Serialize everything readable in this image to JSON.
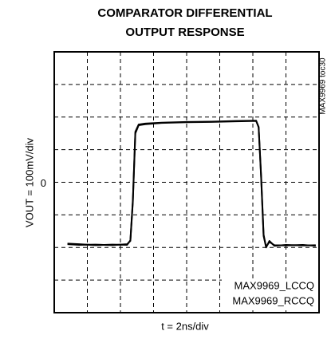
{
  "chart_data": {
    "type": "line",
    "title": [
      "COMPARATOR DIFFERENTIAL",
      "OUTPUT RESPONSE"
    ],
    "x_label": "t = 2ns/div",
    "y_label": "VOUT = 100mV/div",
    "annotation": "MAX9969 toc30",
    "xlim": [
      0,
      16
    ],
    "ylim": [
      -400,
      400
    ],
    "xgrid": [
      2,
      4,
      6,
      8,
      10,
      12,
      14
    ],
    "ygrid": [
      -300,
      -200,
      -100,
      100,
      200,
      300
    ],
    "yticks": [
      {
        "value": 0,
        "label": "0"
      }
    ],
    "grid": true,
    "legend": "lower right",
    "series": [
      {
        "name": "MAX9969_LCCQ",
        "color": "#000000",
        "x": [
          0.8,
          1.5,
          2.5,
          3.5,
          4.4,
          4.6,
          4.75,
          4.9,
          5.1,
          5.5,
          6.5,
          8,
          9.5,
          11,
          12.2,
          12.35,
          12.5,
          12.65,
          12.8,
          13.0,
          13.3,
          14,
          15,
          15.8
        ],
        "values": [
          -190,
          -192,
          -191,
          -193,
          -190,
          -180,
          -60,
          150,
          175,
          178,
          182,
          184,
          185,
          187,
          188,
          170,
          20,
          -160,
          -200,
          -180,
          -195,
          -192,
          -194,
          -193
        ]
      },
      {
        "name": "MAX9969_RCCQ",
        "color": "#000000",
        "x": [
          0.8,
          1.5,
          2.5,
          3.5,
          4.4,
          4.6,
          4.75,
          4.9,
          5.1,
          5.5,
          6.5,
          8,
          9.5,
          11,
          12.2,
          12.35,
          12.5,
          12.65,
          12.8,
          13.0,
          13.3,
          14,
          15,
          15.8
        ],
        "values": [
          -188,
          -190,
          -193,
          -191,
          -192,
          -178,
          -55,
          155,
          177,
          180,
          183,
          185,
          186,
          188,
          189,
          168,
          15,
          -165,
          -198,
          -183,
          -193,
          -194,
          -192,
          -195
        ]
      }
    ]
  }
}
